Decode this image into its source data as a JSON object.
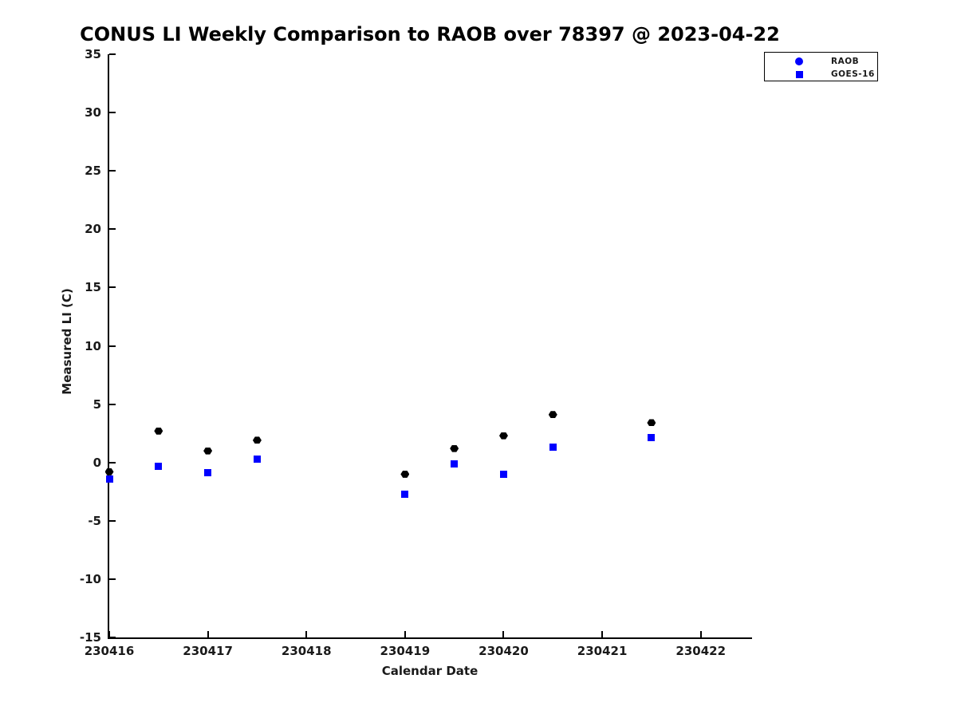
{
  "chart_data": {
    "type": "scatter",
    "title": "CONUS LI Weekly Comparison to RAOB over 78397 @ 2023-04-22",
    "xlabel": "Calendar Date",
    "ylabel": "Measured LI (C)",
    "xlim": [
      230416,
      230422.52
    ],
    "ylim": [
      -15,
      35
    ],
    "x_ticks": [
      230416,
      230417,
      230418,
      230419,
      230420,
      230421,
      230422
    ],
    "y_ticks": [
      -15,
      -10,
      -5,
      0,
      5,
      10,
      15,
      20,
      25,
      30,
      35
    ],
    "grid": false,
    "background_color": "#ffffff",
    "axis_color": "#000000",
    "text_color": "#1a1a1a",
    "series": [
      {
        "name": "GOES-16",
        "marker": "square",
        "color": "#0000ff",
        "x": [
          230416.0,
          230416.5,
          230417.0,
          230417.5,
          230419.0,
          230419.5,
          230420.0,
          230420.5,
          230421.5
        ],
        "y": [
          -1.4,
          -0.3,
          -0.9,
          0.3,
          -2.7,
          -0.1,
          -1.0,
          1.3,
          2.1
        ]
      },
      {
        "name": "RAOB",
        "marker": "hexagon",
        "color": "#000000",
        "x": [
          230416.0,
          230416.5,
          230417.0,
          230417.5,
          230419.0,
          230419.5,
          230420.0,
          230420.5,
          230421.5
        ],
        "y": [
          -0.8,
          2.7,
          1.0,
          1.9,
          -1.0,
          1.2,
          2.3,
          4.1,
          3.4
        ]
      }
    ],
    "legend": {
      "position": "top-right-outside",
      "entries": [
        {
          "label": "RAOB",
          "marker": "circle",
          "color": "#0000ff"
        },
        {
          "label": "GOES-16",
          "marker": "square",
          "color": "#0000ff"
        }
      ]
    }
  }
}
